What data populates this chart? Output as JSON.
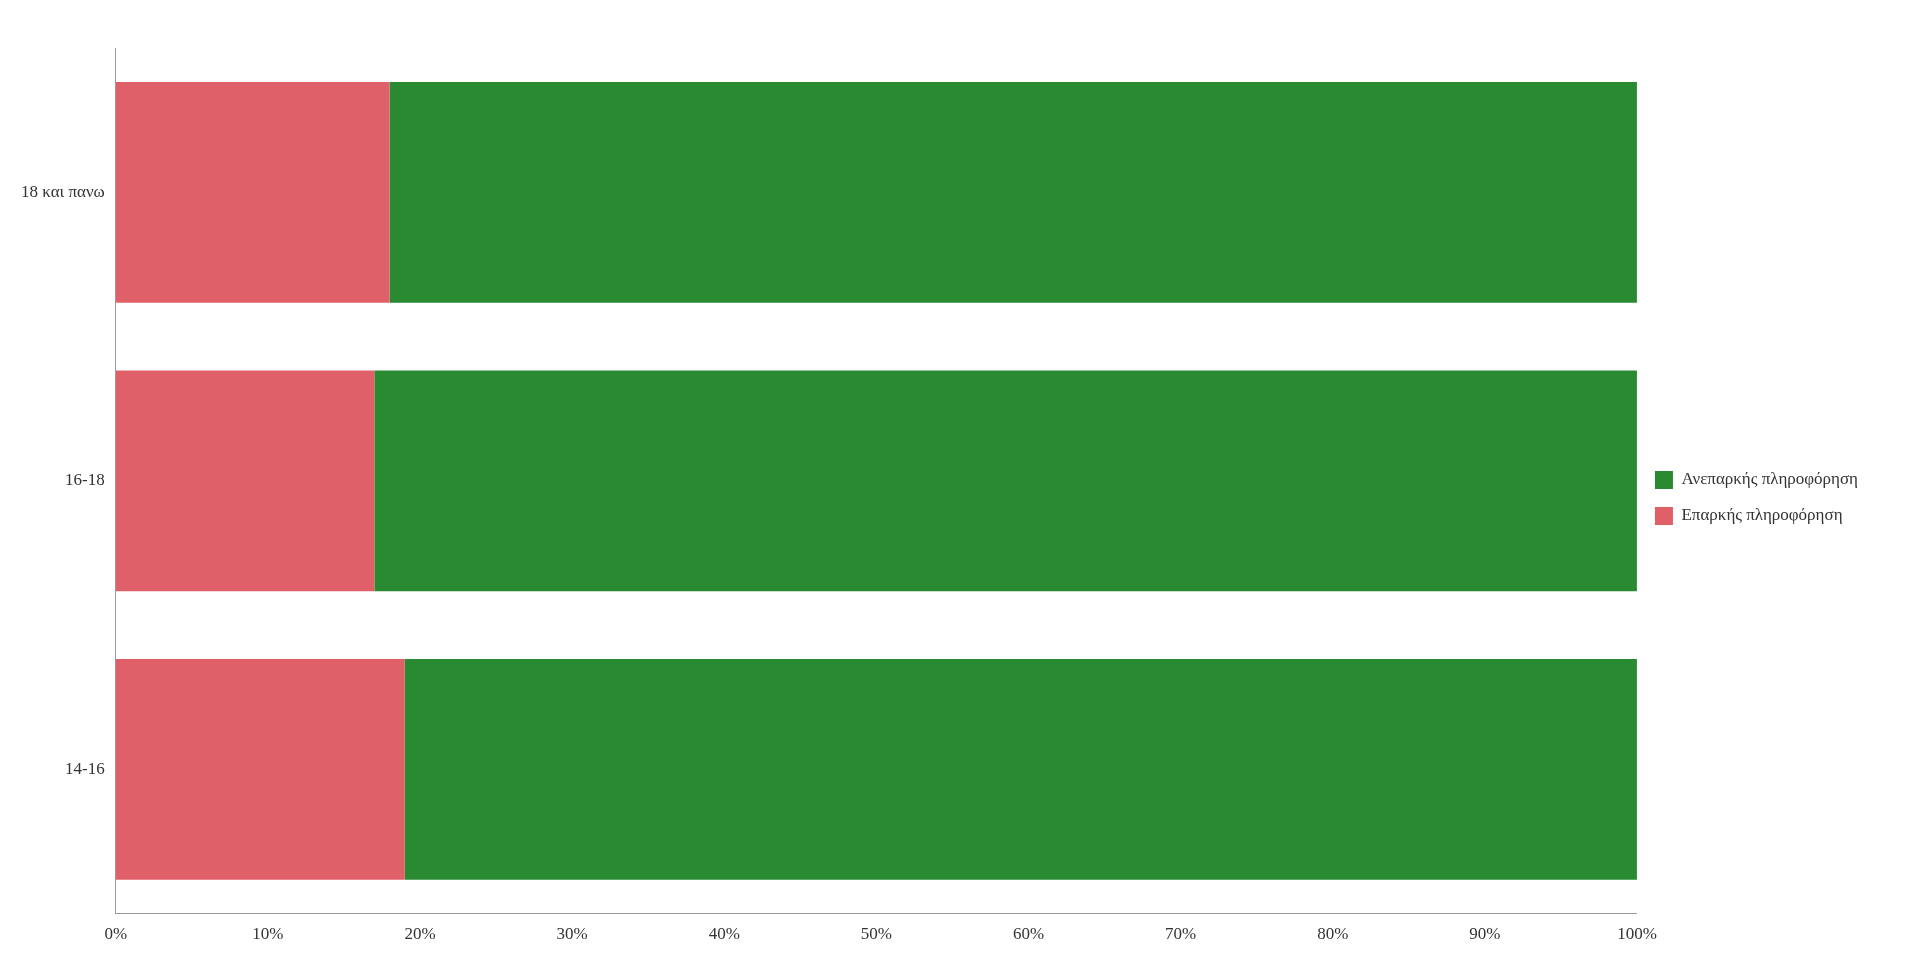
{
  "chart_data": {
    "type": "bar",
    "orientation": "horizontal",
    "stacked": true,
    "categories": [
      "18 και πανω",
      "16-18",
      "14-16"
    ],
    "series": [
      {
        "name": "Επαρκής πληροφόρηση",
        "color": "#e0606a",
        "values": [
          18,
          17,
          19
        ]
      },
      {
        "name": "Ανεπαρκής πληροφόρηση",
        "color": "#2a8a32",
        "values": [
          82,
          83,
          81
        ]
      }
    ],
    "xlim": [
      0,
      100
    ],
    "xticks": [
      {
        "value": 0,
        "label": "0%"
      },
      {
        "value": 10,
        "label": "10%"
      },
      {
        "value": 20,
        "label": "20%"
      },
      {
        "value": 30,
        "label": "30%"
      },
      {
        "value": 40,
        "label": "40%"
      },
      {
        "value": 50,
        "label": "50%"
      },
      {
        "value": 60,
        "label": "60%"
      },
      {
        "value": 70,
        "label": "70%"
      },
      {
        "value": 80,
        "label": "80%"
      },
      {
        "value": 90,
        "label": "90%"
      },
      {
        "value": 100,
        "label": "100%"
      }
    ],
    "grid": false,
    "legend": "right"
  }
}
